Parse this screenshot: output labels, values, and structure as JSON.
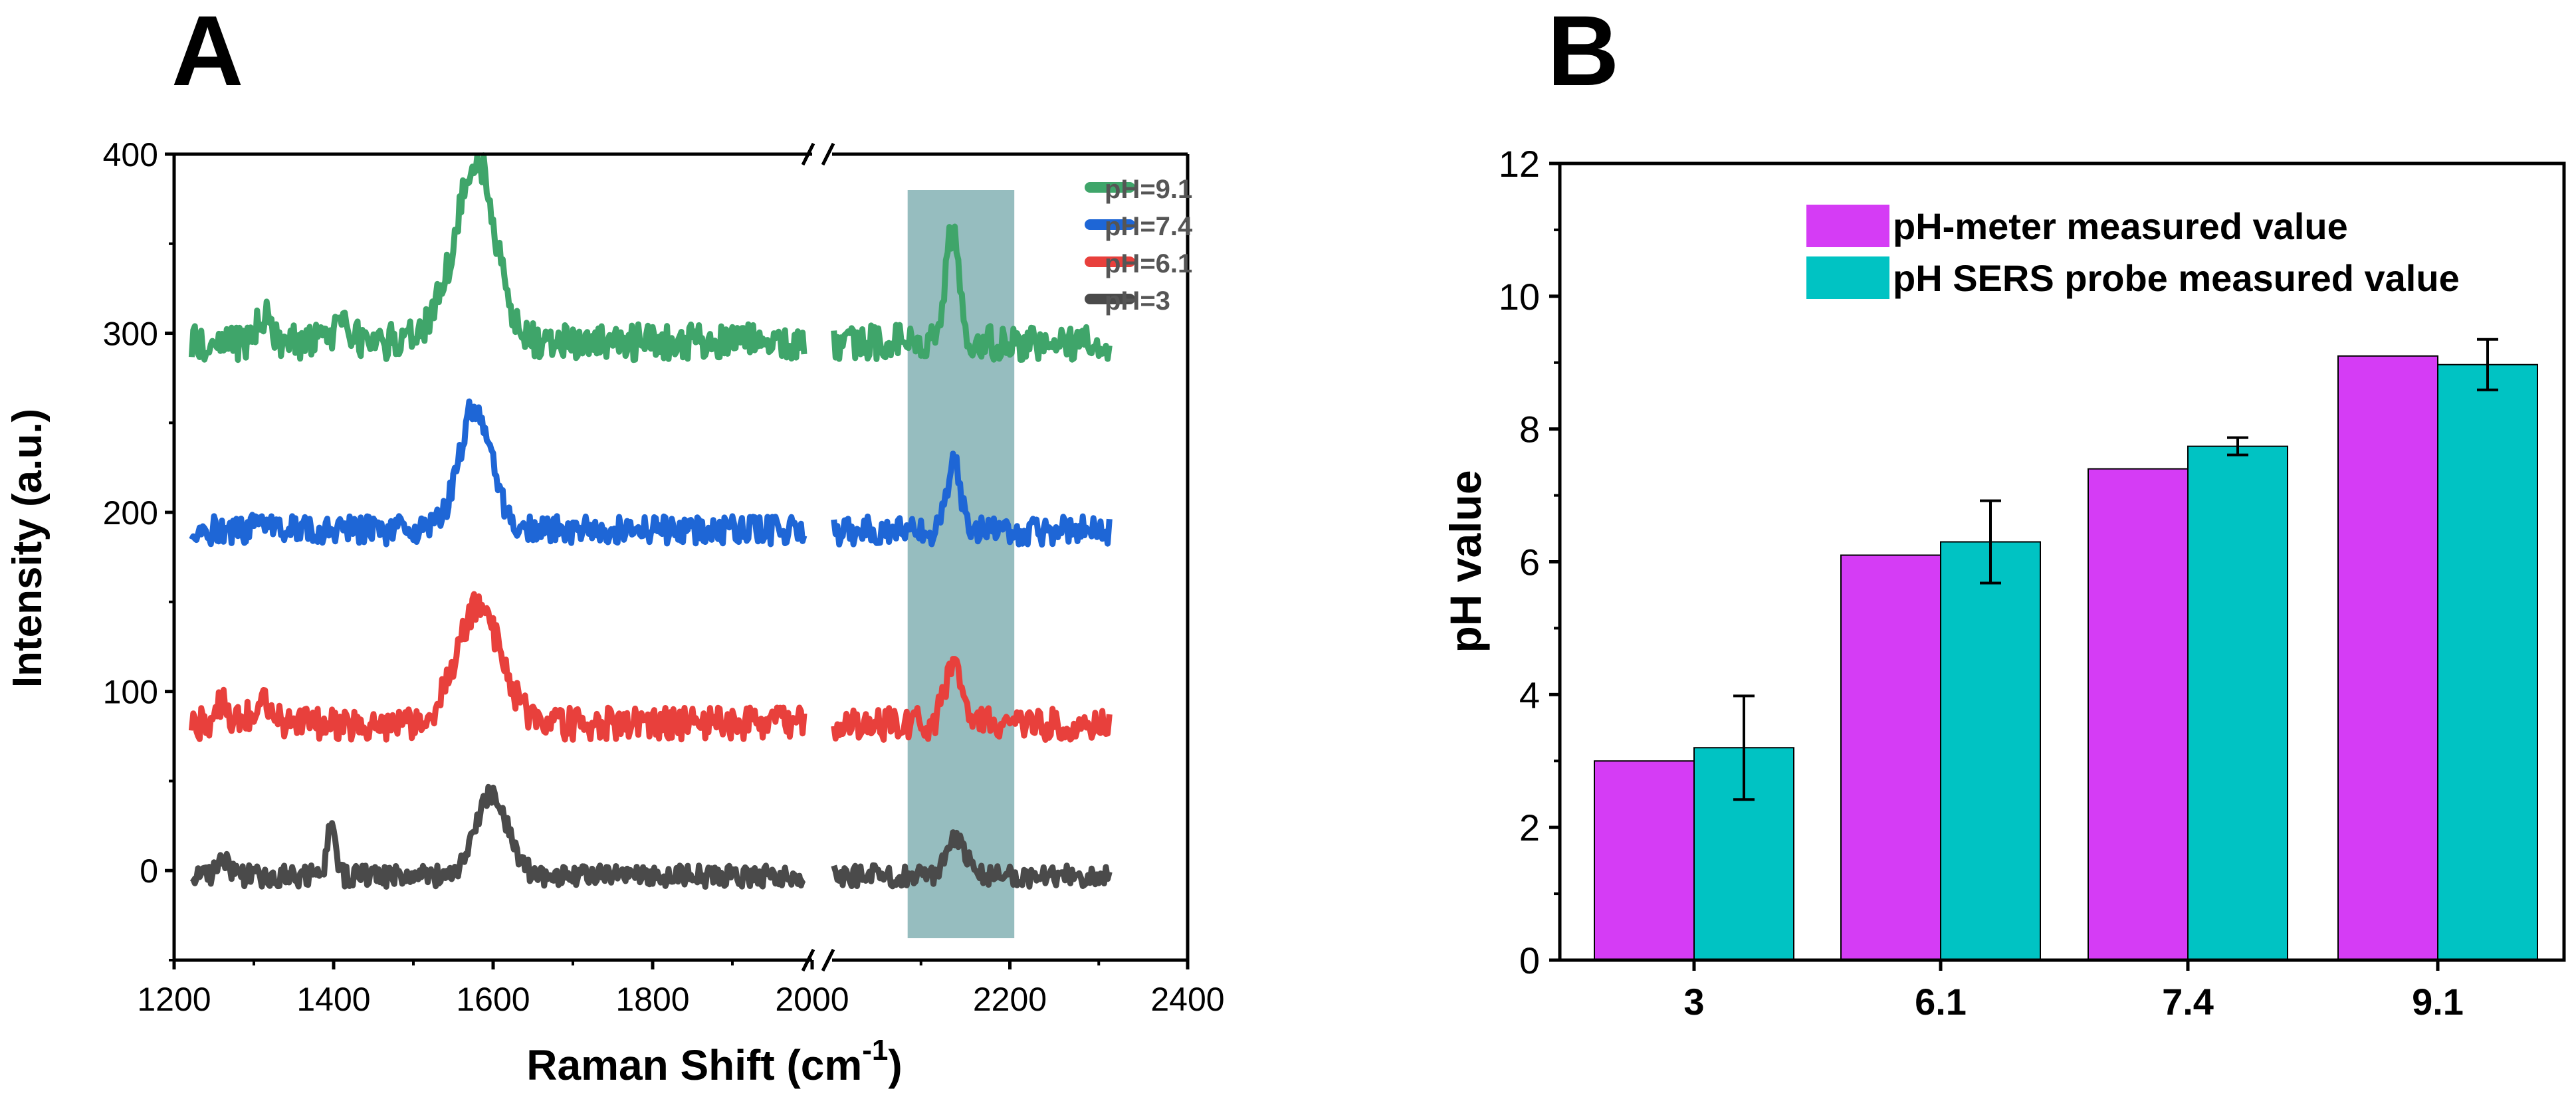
{
  "panels": {
    "a_label": "A",
    "b_label": "B"
  },
  "colors": {
    "green": "#3fa56a",
    "blue": "#1e66d6",
    "red": "#e8403c",
    "gray": "#4a4a4a",
    "highlight": "#5d9a9c",
    "magenta": "#d53cf5",
    "cyan": "#00c3c3"
  },
  "chart_data": [
    {
      "type": "line",
      "panel": "A",
      "title": "",
      "xlabel": "Raman Shift (cm",
      "xlabel_sup": "-1",
      "xlabel_close": ")",
      "ylabel": "Intensity (a.u.)",
      "xlim_left": [
        1200,
        2000
      ],
      "xlim_right": [
        2000,
        2400
      ],
      "x_ticks_left": [
        1200,
        1400,
        1600,
        1800,
        2000
      ],
      "x_ticks_right": [
        2200,
        2400
      ],
      "ylim": [
        -50,
        400
      ],
      "y_ticks": [
        0,
        100,
        200,
        300,
        400
      ],
      "x_break_at": 2000,
      "highlight_band": [
        2085,
        2205
      ],
      "legend_position": "top-right",
      "series": [
        {
          "name": "pH=9.1",
          "color": "#3fa56a",
          "baseline": 295,
          "noise": 10,
          "peaks": [
            [
              1582,
              85,
              22
            ],
            [
              1555,
              25,
              30
            ],
            [
              1312,
              15,
              8
            ],
            [
              1410,
              12,
              10
            ],
            [
              2135,
              60,
              7
            ]
          ],
          "seed": 11
        },
        {
          "name": "pH=7.4",
          "color": "#1e66d6",
          "baseline": 190,
          "noise": 8,
          "peaks": [
            [
              1578,
              70,
              20
            ],
            [
              1310,
              8,
              10
            ],
            [
              2137,
              40,
              7
            ]
          ],
          "seed": 23
        },
        {
          "name": "pH=6.1",
          "color": "#e8403c",
          "baseline": 82,
          "noise": 9,
          "peaks": [
            [
              1582,
              65,
              28
            ],
            [
              1310,
              12,
              12
            ],
            [
              1260,
              12,
              8
            ],
            [
              2138,
              32,
              10
            ]
          ],
          "seed": 37
        },
        {
          "name": "pH=3",
          "color": "#4a4a4a",
          "baseline": -3,
          "noise": 6,
          "peaks": [
            [
              1598,
              45,
              20
            ],
            [
              1397,
              32,
              5
            ],
            [
              1262,
              8,
              8
            ],
            [
              2140,
              22,
              10
            ]
          ],
          "seed": 51
        }
      ]
    },
    {
      "type": "bar",
      "panel": "B",
      "title": "",
      "xlabel": "",
      "ylabel": "pH value",
      "categories": [
        "3",
        "6.1",
        "7.4",
        "9.1"
      ],
      "ylim": [
        0,
        12
      ],
      "y_ticks": [
        0,
        2,
        4,
        6,
        8,
        10,
        12
      ],
      "legend_position": "top-right",
      "series": [
        {
          "name": "pH-meter measured value",
          "color": "#d53cf5",
          "values": [
            3.0,
            6.1,
            7.4,
            9.1
          ],
          "errors": [
            0,
            0,
            0,
            0
          ]
        },
        {
          "name": "pH SERS probe measured value",
          "color": "#00c3c3",
          "values": [
            3.2,
            6.3,
            7.74,
            8.97
          ],
          "errors": [
            0.78,
            0.62,
            0.13,
            0.38
          ]
        }
      ]
    }
  ]
}
